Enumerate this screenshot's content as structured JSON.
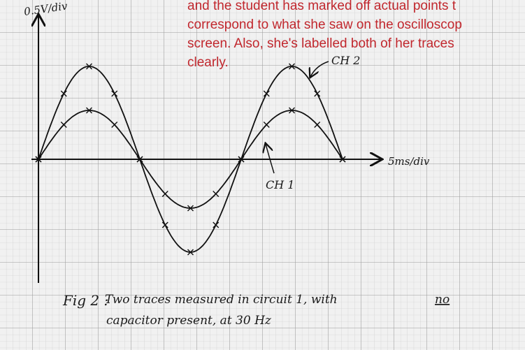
{
  "notes": {
    "lines": [
      "and the student has marked off actual points t",
      "correspond to what she saw on the oscilloscop",
      "screen. Also, she's labelled both of her traces",
      "clearly."
    ]
  },
  "graph": {
    "y_axis_label": "0.5V/div",
    "x_axis_label": "5ms/div",
    "trace_labels": [
      "CH 2",
      "CH 1"
    ]
  },
  "caption": {
    "figure": "Fig 2 :",
    "line1": "Two traces measured in circuit 1, with",
    "emphasis": "no",
    "line2": "capacitor present, at 30 Hz"
  }
}
